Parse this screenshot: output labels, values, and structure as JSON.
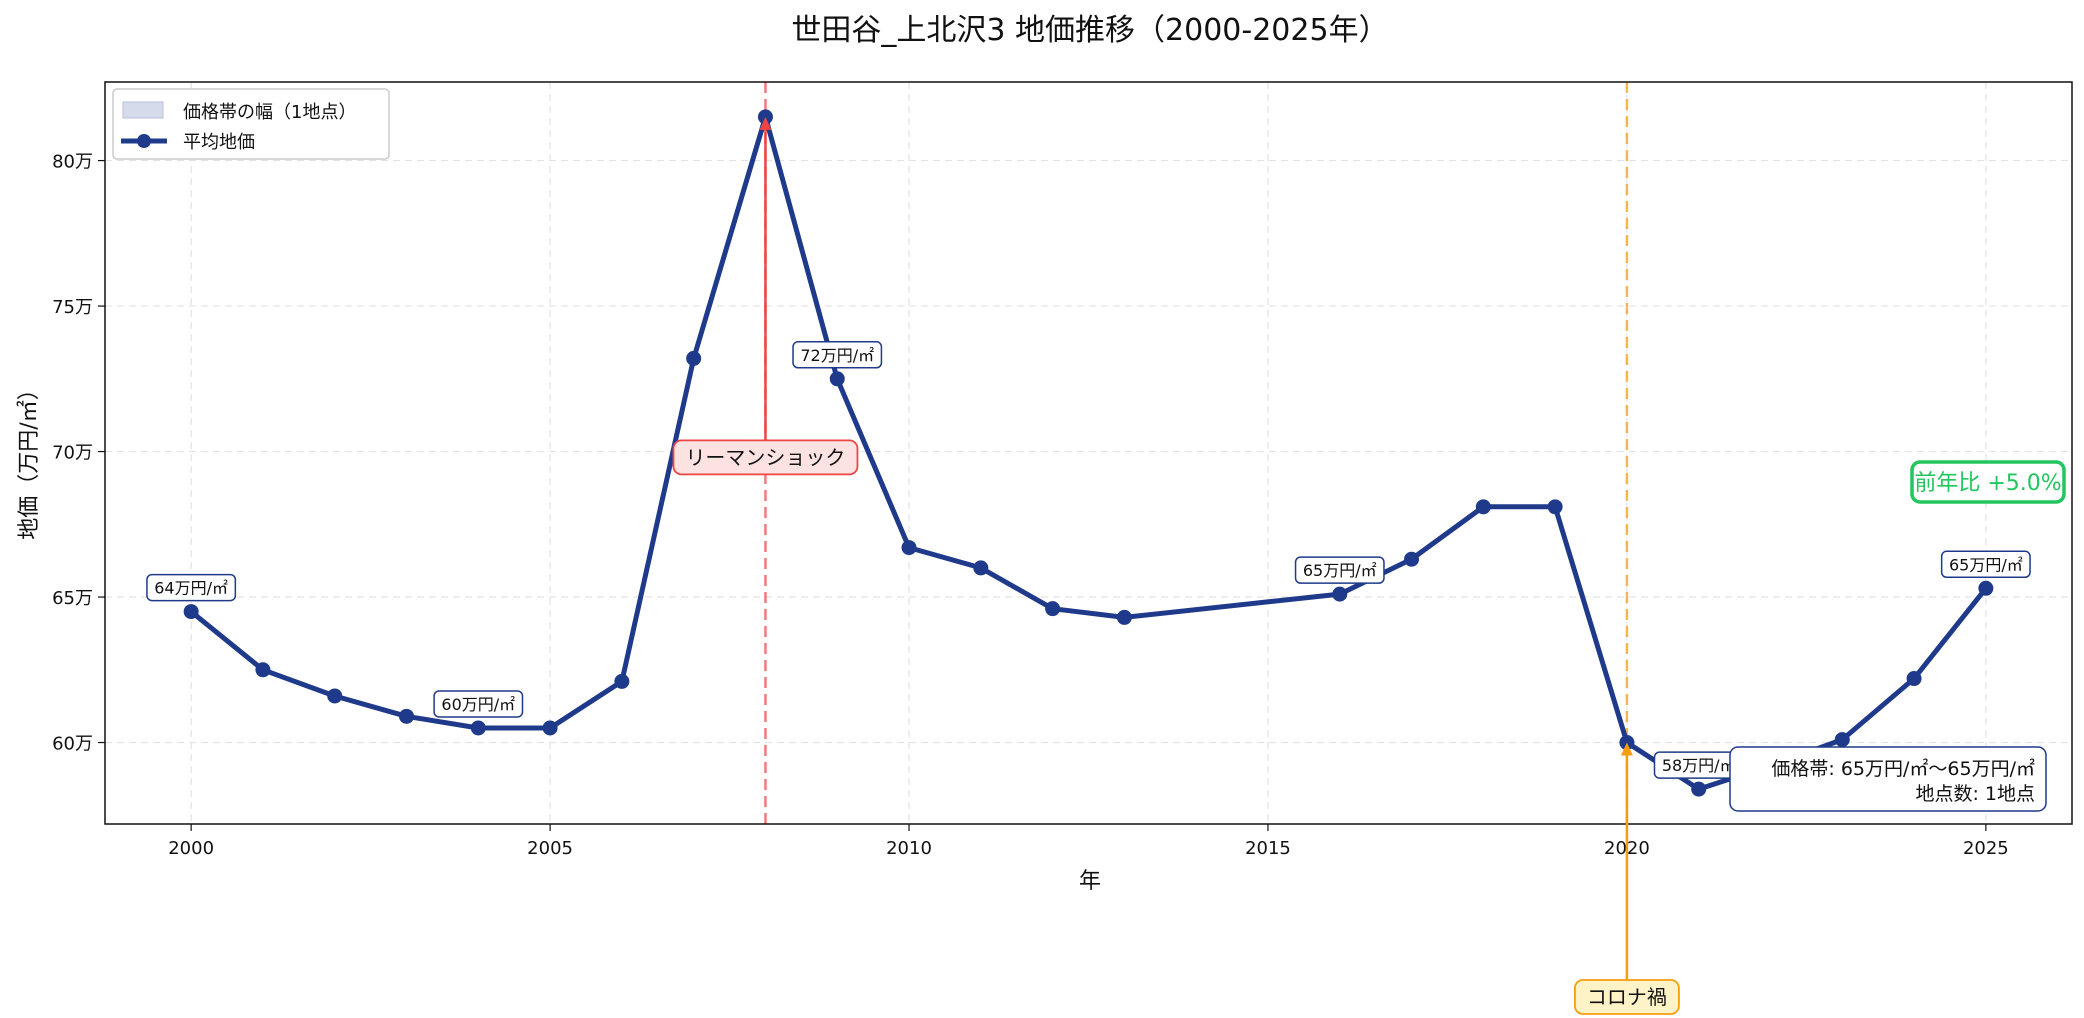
{
  "chart_data": {
    "type": "line",
    "title": "世田谷_上北沢3 地価推移（2000-2025年）",
    "xlabel": "年",
    "ylabel": "地価（万円/㎡）",
    "xlim": [
      1998.8,
      2026.2
    ],
    "ylim": [
      57.2,
      82.7
    ],
    "x_ticks": [
      2000,
      2005,
      2010,
      2015,
      2020,
      2025
    ],
    "y_ticks": [
      60,
      65,
      70,
      75,
      80
    ],
    "y_tick_labels": [
      "60万",
      "65万",
      "70万",
      "75万",
      "80万"
    ],
    "grid": true,
    "legend_position": "top-left",
    "legend": [
      {
        "label": "価格帯の幅（1地点）",
        "kind": "band",
        "color": "#c7cfe6"
      },
      {
        "label": "平均地価",
        "kind": "line",
        "color": "#1f3a8a"
      }
    ],
    "series": [
      {
        "name": "平均地価",
        "color": "#1f3a8a",
        "x": [
          2000,
          2001,
          2002,
          2003,
          2004,
          2005,
          2006,
          2007,
          2008,
          2009,
          2010,
          2011,
          2012,
          2013,
          2016,
          2017,
          2018,
          2019,
          2020,
          2021,
          2022,
          2023,
          2024,
          2025
        ],
        "y": [
          64.5,
          62.5,
          61.6,
          60.9,
          60.5,
          60.5,
          62.1,
          73.2,
          81.5,
          72.5,
          66.7,
          66.0,
          64.6,
          64.3,
          65.1,
          66.3,
          68.1,
          68.1,
          60.0,
          58.4,
          59.2,
          60.1,
          62.2,
          65.3
        ]
      }
    ],
    "data_labels": [
      {
        "x": 2000,
        "y": 64.5,
        "text": "64万円/㎡"
      },
      {
        "x": 2004,
        "y": 60.5,
        "text": "60万円/㎡"
      },
      {
        "x": 2009,
        "y": 72.5,
        "text": "72万円/㎡"
      },
      {
        "x": 2016,
        "y": 65.1,
        "text": "65万円/㎡"
      },
      {
        "x": 2021,
        "y": 58.4,
        "text": "58万円/㎡"
      },
      {
        "x": 2025,
        "y": 65.3,
        "text": "65万円/㎡"
      }
    ],
    "events": [
      {
        "x": 2008,
        "label": "リーマンショック",
        "color": "#ef4444",
        "fill": "#fde2e2"
      },
      {
        "x": 2020,
        "label": "コロナ禍",
        "color": "#f59e0b",
        "fill": "#fef3c7"
      }
    ],
    "yoy_text": "前年比 +5.0%",
    "info_box": {
      "line1": "価格帯: 65万円/㎡〜65万円/㎡",
      "line2": "地点数: 1地点"
    }
  }
}
